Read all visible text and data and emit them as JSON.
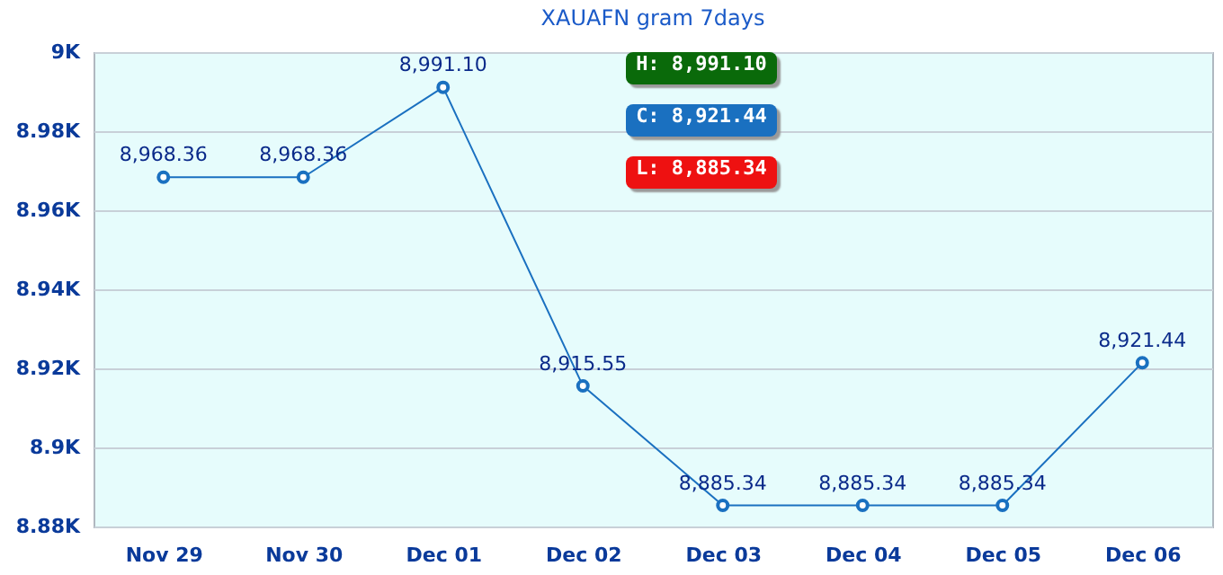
{
  "chart_data": {
    "type": "line",
    "title": "XAUAFN gram  7days",
    "categories": [
      "Nov 29",
      "Nov 30",
      "Dec 01",
      "Dec 02",
      "Dec 03",
      "Dec 04",
      "Dec 05",
      "Dec 06"
    ],
    "values": [
      8968.36,
      8968.36,
      8991.1,
      8915.55,
      8885.34,
      8885.34,
      8885.34,
      8921.44
    ],
    "color": "#1a70c0",
    "ylim": [
      8880,
      9000
    ],
    "yticks": [
      {
        "value": 8880,
        "label": "8.88K"
      },
      {
        "value": 8900,
        "label": "8.9K"
      },
      {
        "value": 8920,
        "label": "8.92K"
      },
      {
        "value": 8940,
        "label": "8.94K"
      },
      {
        "value": 8960,
        "label": "8.96K"
      },
      {
        "value": 8980,
        "label": "8.98K"
      },
      {
        "value": 9000,
        "label": "9K"
      }
    ],
    "grid": "y",
    "marker": "circle",
    "value_labels": [
      "8,968.36",
      "8,968.36",
      "8,991.10",
      "8,915.55",
      "8,885.34",
      "8,885.34",
      "8,885.34",
      "8,921.44"
    ],
    "annotations": [
      "H: 8,991.10",
      "C: 8,921.44",
      "L: 8,885.34"
    ]
  }
}
